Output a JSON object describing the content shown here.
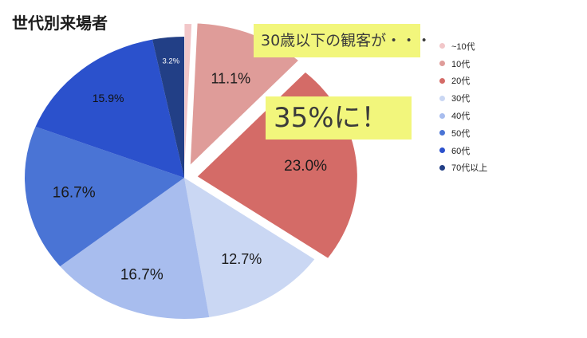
{
  "colors": {
    "callout_bg": "#f2f67c"
  },
  "chart_data": {
    "type": "pie",
    "title": "世代別来場者",
    "categories": [
      "~10代",
      "10代",
      "20代",
      "30代",
      "40代",
      "50代",
      "60代",
      "70代以上"
    ],
    "values": [
      0.7,
      11.1,
      23.0,
      12.7,
      16.7,
      16.7,
      15.9,
      3.2
    ],
    "data_labels": [
      "",
      "11.1%",
      "23.0%",
      "12.7%",
      "16.7%",
      "16.7%",
      "15.9%",
      "3.2%"
    ],
    "colors": [
      "#f2c7c9",
      "#df9c99",
      "#d46b67",
      "#cad7f3",
      "#a8bdee",
      "#4a74d5",
      "#2b51cc",
      "#223f86"
    ],
    "exploded": [
      "~10代",
      "10代",
      "20代"
    ],
    "legend_position": "right",
    "annotations": [
      "30歳以下の観客が・・・",
      "35%に！"
    ]
  }
}
